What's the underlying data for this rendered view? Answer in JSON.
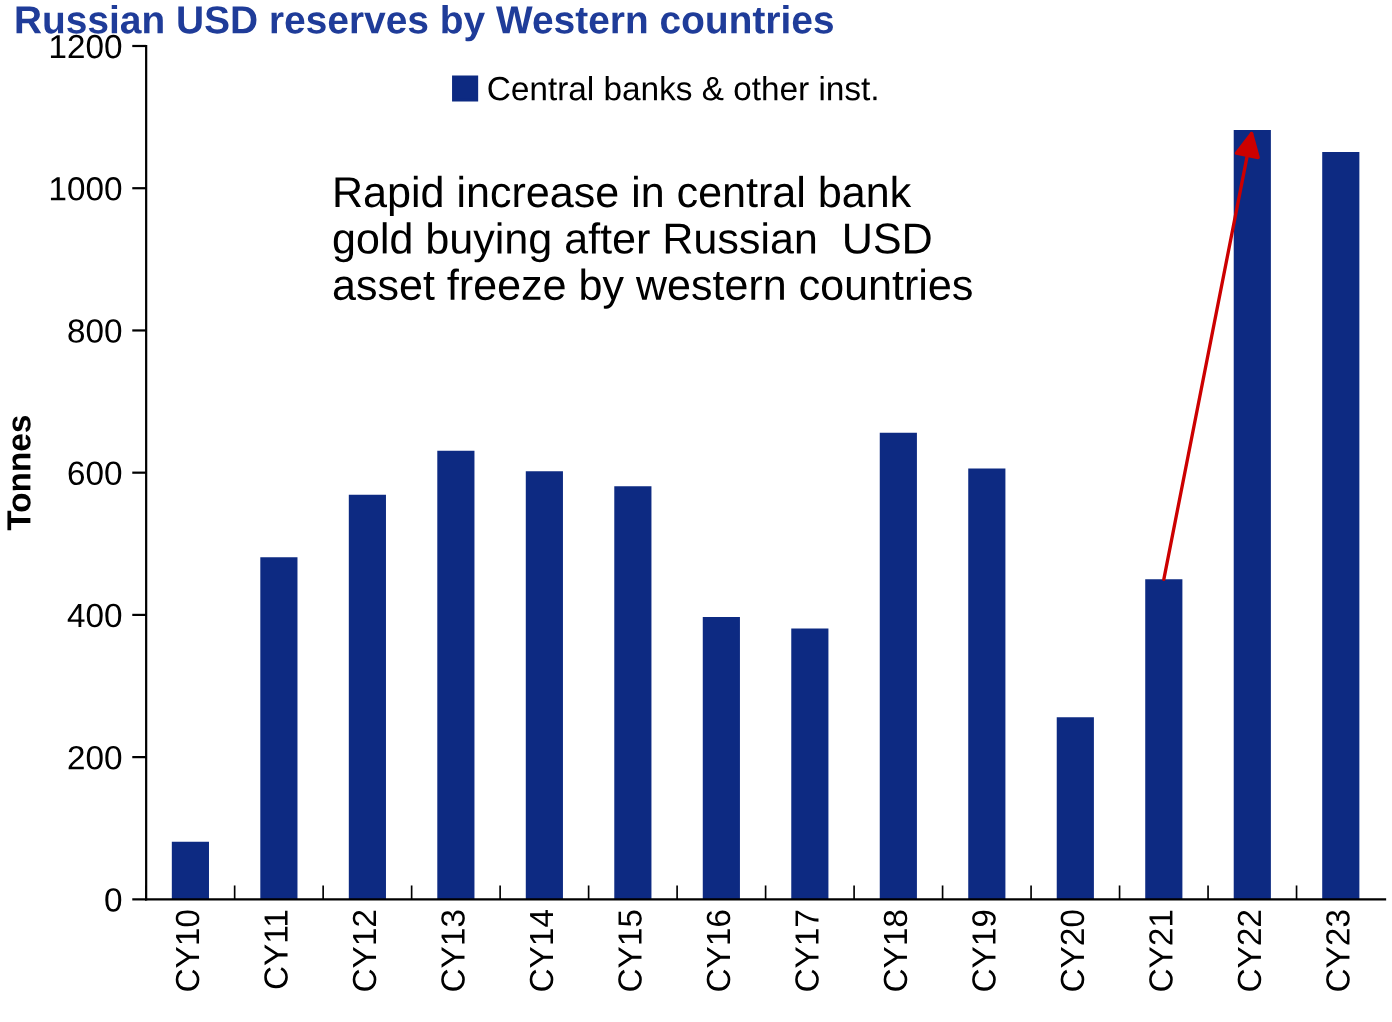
{
  "chart_data": {
    "type": "bar",
    "title": "Russian USD reserves by Western countries",
    "ylabel": "Tonnes",
    "categories": [
      "CY10",
      "CY11",
      "CY12",
      "CY13",
      "CY14",
      "CY15",
      "CY16",
      "CY17",
      "CY18",
      "CY19",
      "CY20",
      "CY21",
      "CY22",
      "CY23"
    ],
    "series": [
      {
        "name": "Central banks & other inst.",
        "color": "#0d2a82",
        "values": [
          81,
          481,
          569,
          631,
          602,
          581,
          397,
          381,
          656,
          606,
          256,
          450,
          1082,
          1051
        ]
      }
    ],
    "ylim": [
      0,
      1200
    ],
    "yticks": [
      0,
      200,
      400,
      600,
      800,
      1000,
      1200
    ],
    "grid": false,
    "legend": "top",
    "annotations": [
      "Rapid increase in central bank\ngold buying after Russian  USD\nasset freeze by western countries"
    ]
  }
}
